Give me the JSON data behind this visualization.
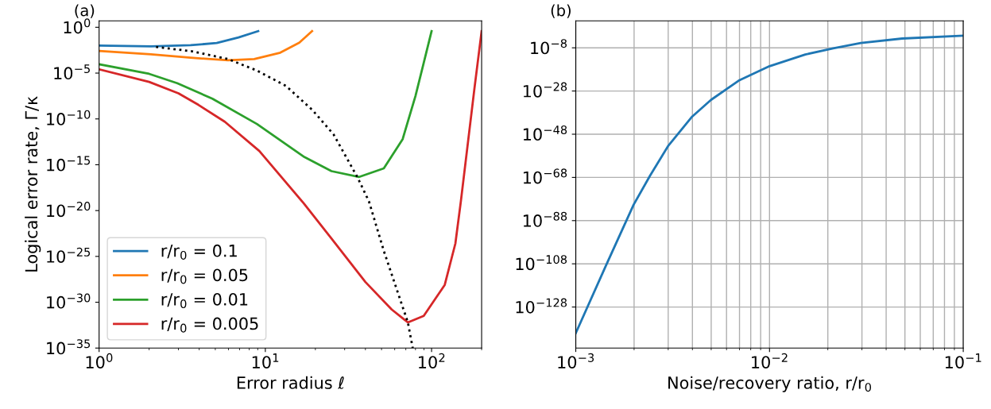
{
  "chart_data": [
    {
      "type": "line",
      "xlabel": "Error radius ℓ",
      "ylabel": "Logical error rate, Γ/κ",
      "log": "xy",
      "xlim": [
        1,
        200
      ],
      "ylim": [
        1e-35,
        5
      ],
      "xticks": [
        {
          "value": 1,
          "label": "10$^{0}$"
        },
        {
          "value": 10,
          "label": "10$^{1}$"
        },
        {
          "value": 100,
          "label": "10$^{2}$"
        }
      ],
      "yticks": [
        {
          "value": 1,
          "label": "10$^{0}$"
        },
        {
          "value": 1e-05,
          "label": "10$^{−5}$"
        },
        {
          "value": 1e-10,
          "label": "10$^{−10}$"
        },
        {
          "value": 1e-15,
          "label": "10$^{−15}$"
        },
        {
          "value": 1e-20,
          "label": "10$^{−20}$"
        },
        {
          "value": 1e-25,
          "label": "10$^{−25}$"
        },
        {
          "value": 1e-30,
          "label": "10$^{−30}$"
        },
        {
          "value": 1e-35,
          "label": "10$^{−35}$"
        }
      ],
      "legend": "bottom left",
      "grid": false,
      "annotations": [
        "(a)"
      ],
      "series": [
        {
          "name": "r/r$_{0}$ = 0.1",
          "color": "#1f77b4",
          "x": [
            1,
            2.05,
            3.55,
            5.1,
            6.9,
            9.06
          ],
          "values": [
            0.01,
            0.0083,
            0.011,
            0.019,
            0.079,
            0.38
          ]
        },
        {
          "name": "r/r$_{0}$ = 0.05",
          "color": "#ff7f0e",
          "x": [
            1,
            2.05,
            3.55,
            5.96,
            8.57,
            12.3,
            16,
            19.1
          ],
          "values": [
            0.0026,
            0.0011,
            0.00047,
            0.00025,
            0.00034,
            0.0017,
            0.021,
            0.38
          ]
        },
        {
          "name": "r/r$_{0}$ = 0.01",
          "color": "#2ca02c",
          "x": [
            1,
            2,
            2.95,
            4.8,
            8.9,
            17.2,
            25,
            36.7,
            51.6,
            67,
            80,
            89.7,
            100
          ],
          "values": [
            9.3e-05,
            8.3e-06,
            7.9e-07,
            1.6e-08,
            2.8e-11,
            6.8e-15,
            2e-16,
            4.7e-17,
            4e-16,
            6.3e-13,
            3.2e-08,
            0.00013,
            0.38
          ]
        },
        {
          "name": "r/r$_{0}$ = 0.005",
          "color": "#d62728",
          "x": [
            1,
            2,
            3,
            3.96,
            5.7,
            9.2,
            17,
            25,
            40,
            57.6,
            72,
            89.7,
            120,
            139,
            150,
            181,
            200
          ],
          "values": [
            2.6e-05,
            1.1e-06,
            6.3e-08,
            3.4e-09,
            5e-11,
            3.2e-14,
            6.3e-20,
            8.7e-24,
            1.6e-28,
            1.6e-31,
            6.3e-33,
            3.2e-32,
            7.9e-29,
            2.5e-24,
            1e-19,
            2e-07,
            0.38
          ]
        },
        {
          "color": "#000000",
          "line_style": "dotted",
          "x": [
            2.2,
            3.67,
            5.96,
            8.9,
            13.3,
            19.2,
            25.7,
            35.9,
            42,
            51.6,
            72,
            77
          ],
          "values": [
            0.0072,
            0.0023,
            0.00034,
            1.9e-05,
            4e-07,
            9.3e-10,
            2.1e-12,
            4e-17,
            1e-19,
            4e-25,
            6.3e-33,
            1e-35
          ]
        }
      ]
    },
    {
      "type": "line",
      "xlabel": "Noise/recovery ratio, r/r$_{0}$",
      "log": "xy",
      "xlim": [
        0.001,
        0.1
      ],
      "ylim": [
        1e-147,
        30000.0
      ],
      "xticks": [
        {
          "value": 0.001,
          "label": "10$^{−3}$"
        },
        {
          "value": 0.01,
          "label": "10$^{−2}$"
        },
        {
          "value": 0.1,
          "label": "10$^{−1}$"
        }
      ],
      "yticks": [
        {
          "value": 1e-08,
          "label": "10$^{−8}$"
        },
        {
          "value": 1e-28,
          "label": "10$^{−28}$"
        },
        {
          "value": 1e-48,
          "label": "10$^{−48}$"
        },
        {
          "value": 1e-68,
          "label": "10$^{−68}$"
        },
        {
          "value": 1e-88,
          "label": "10$^{−88}$"
        },
        {
          "value": 1e-108,
          "label": "10$^{−108}$"
        },
        {
          "value": 1e-128,
          "label": "10$^{−128}$"
        }
      ],
      "grid": true,
      "annotations": [
        "(b)"
      ],
      "series": [
        {
          "color": "#1f77b4",
          "x": [
            0.001,
            0.00143,
            0.00199,
            0.00242,
            0.00299,
            0.00396,
            0.00499,
            0.00693,
            0.01,
            0.0153,
            0.0213,
            0.0296,
            0.0484,
            0.1
          ],
          "values": [
            7.9e-141,
            1.3e-109,
            2.5e-81,
            7.9e-68,
            2.5e-54,
            7.9e-41,
            7.9e-33,
            6.3e-24,
            3.2e-17,
            7.9e-12,
            5.6e-09,
            1.6e-06,
            0.0002,
            0.0044
          ]
        }
      ]
    }
  ]
}
